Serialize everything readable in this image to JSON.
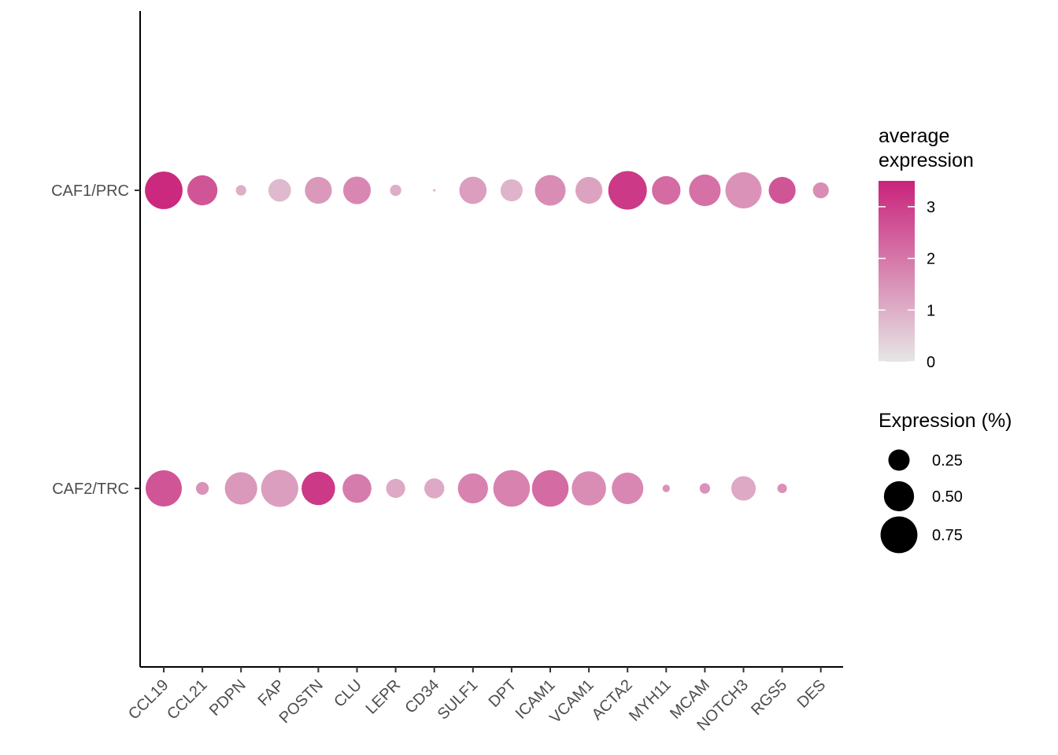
{
  "chart_data": {
    "type": "dotplot",
    "categories": [
      "CCL19",
      "CCL21",
      "PDPN",
      "FAP",
      "POSTN",
      "CLU",
      "LEPR",
      "CD34",
      "SULF1",
      "DPT",
      "ICAM1",
      "VCAM1",
      "ACTA2",
      "MYH11",
      "MCAM",
      "NOTCH3",
      "RGS5",
      "DES"
    ],
    "groups": [
      "CAF1/PRC",
      "CAF2/TRC"
    ],
    "series": [
      {
        "name": "CAF1/PRC",
        "avg_expression": [
          3.4,
          2.6,
          1.0,
          0.8,
          1.4,
          1.7,
          1.0,
          1.0,
          1.3,
          0.9,
          1.6,
          1.2,
          3.1,
          2.2,
          2.1,
          1.5,
          2.6,
          1.6
        ],
        "pct_expression": [
          0.78,
          0.5,
          0.06,
          0.28,
          0.4,
          0.42,
          0.07,
          0.003,
          0.41,
          0.27,
          0.52,
          0.4,
          0.82,
          0.45,
          0.55,
          0.72,
          0.4,
          0.14
        ]
      },
      {
        "name": "CAF2/TRC",
        "avg_expression": [
          2.6,
          1.5,
          1.4,
          1.3,
          3.1,
          1.9,
          1.1,
          1.1,
          1.8,
          1.8,
          2.2,
          1.6,
          1.7,
          1.5,
          1.5,
          1.1,
          1.5,
          null
        ],
        "pct_expression": [
          0.72,
          0.09,
          0.58,
          0.76,
          0.62,
          0.46,
          0.2,
          0.22,
          0.5,
          0.74,
          0.74,
          0.65,
          0.55,
          0.03,
          0.06,
          0.33,
          0.05,
          null
        ]
      }
    ],
    "color_scale": {
      "low": "#e6e6e6",
      "high": "#c9237b",
      "min": 0,
      "max": 3.5,
      "breaks": [
        0,
        1,
        2,
        3
      ]
    },
    "size_scale": {
      "breaks": [
        "0.25",
        "0.50",
        "0.75"
      ],
      "values": [
        0.25,
        0.5,
        0.75
      ],
      "max": 0.82
    },
    "legend": {
      "color_title": [
        "average",
        "expression"
      ],
      "size_title": "Expression (%)",
      "position": "right"
    },
    "xlabel": "",
    "ylabel": "",
    "grid": false
  }
}
